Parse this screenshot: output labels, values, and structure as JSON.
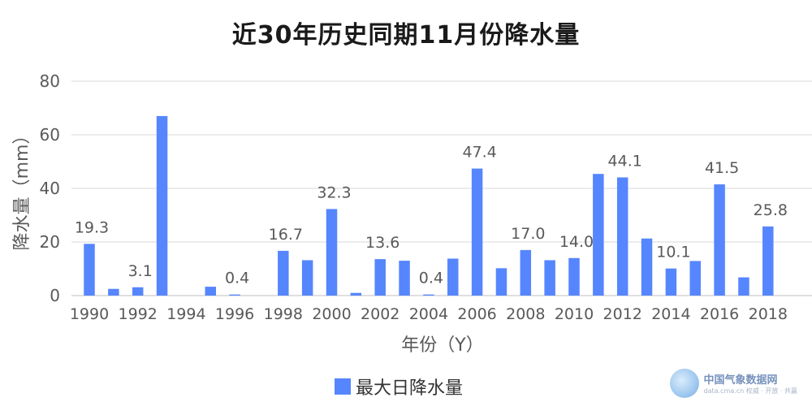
{
  "chart_data": {
    "type": "bar",
    "title": "近30年历史同期11月份降水量",
    "xlabel": "年份（Y）",
    "ylabel": "降水量（mm）",
    "ylim": [
      0,
      80
    ],
    "yticks": [
      0,
      20,
      40,
      60,
      80
    ],
    "grid": true,
    "legend_position": "bottom",
    "bar_color": "#5686fe",
    "categories": [
      "1990",
      "1991",
      "1992",
      "1993",
      "1994",
      "1995",
      "1996",
      "1997",
      "1998",
      "1999",
      "2000",
      "2001",
      "2002",
      "2003",
      "2004",
      "2005",
      "2006",
      "2007",
      "2008",
      "2009",
      "2010",
      "2011",
      "2012",
      "2013",
      "2014",
      "2015",
      "2016",
      "2017",
      "2018"
    ],
    "x_tick_labels": [
      "1990",
      "1992",
      "1994",
      "1996",
      "1998",
      "2000",
      "2002",
      "2004",
      "2006",
      "2008",
      "2010",
      "2012",
      "2014",
      "2016",
      "2018"
    ],
    "series": [
      {
        "name": "最大日降水量",
        "values": [
          19.3,
          2.5,
          3.1,
          67.0,
          0,
          3.3,
          0.4,
          0,
          16.7,
          13.2,
          32.3,
          1.0,
          13.6,
          13.0,
          0.4,
          13.8,
          47.4,
          10.2,
          17.0,
          13.2,
          14.0,
          45.4,
          44.1,
          21.3,
          10.1,
          12.9,
          41.5,
          6.8,
          25.8
        ]
      }
    ],
    "data_labels": {
      "1990": "19.3",
      "1992": "3.1",
      "1996": "0.4",
      "1998": "16.7",
      "2000": "32.3",
      "2002": "13.6",
      "2004": "0.4",
      "2006": "47.4",
      "2008": "17.0",
      "2010": "14.0",
      "2012": "44.1",
      "2014": "10.1",
      "2016": "41.5",
      "2018": "25.8"
    }
  },
  "watermark": {
    "name": "中国气象数据网",
    "sub": "data.cma.cn 权威 · 开放 · 共赢"
  }
}
